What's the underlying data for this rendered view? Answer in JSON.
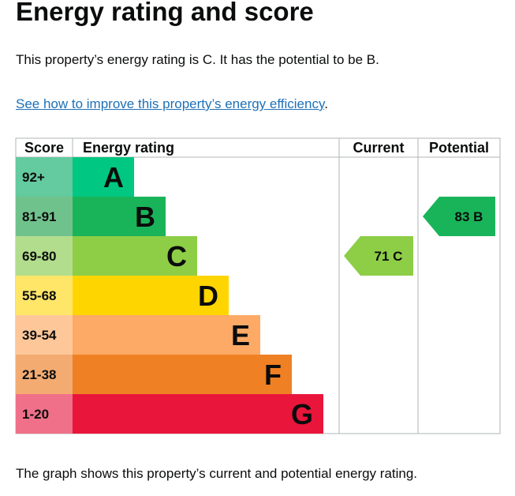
{
  "page": {
    "title": "Energy rating and score",
    "intro": "This property’s energy rating is C. It has the potential to be B.",
    "link_text": "See how to improve this property’s energy efficiency",
    "link_suffix": ".",
    "caption": "The graph shows this property’s current and potential energy rating."
  },
  "chart_data": {
    "type": "bar",
    "column_headers": [
      "Score",
      "Energy rating",
      "Current",
      "Potential"
    ],
    "bands": [
      {
        "rating": "A",
        "score_range": "92+",
        "bar_color": "#00c781",
        "score_color": "#64ca9f"
      },
      {
        "rating": "B",
        "score_range": "81-91",
        "bar_color": "#19b459",
        "score_color": "#70c28c"
      },
      {
        "rating": "C",
        "score_range": "69-80",
        "bar_color": "#8dce46",
        "score_color": "#b2dd8c"
      },
      {
        "rating": "D",
        "score_range": "55-68",
        "bar_color": "#ffd500",
        "score_color": "#ffe669"
      },
      {
        "rating": "E",
        "score_range": "39-54",
        "bar_color": "#fcaa65",
        "score_color": "#fdc79a"
      },
      {
        "rating": "F",
        "score_range": "21-38",
        "bar_color": "#ef8023",
        "score_color": "#f3ab72"
      },
      {
        "rating": "G",
        "score_range": "1-20",
        "bar_color": "#e9153b",
        "score_color": "#f07089"
      }
    ],
    "current": {
      "score": 71,
      "rating": "C",
      "color": "#8dce46"
    },
    "potential": {
      "score": 83,
      "rating": "B",
      "color": "#19b459"
    }
  }
}
